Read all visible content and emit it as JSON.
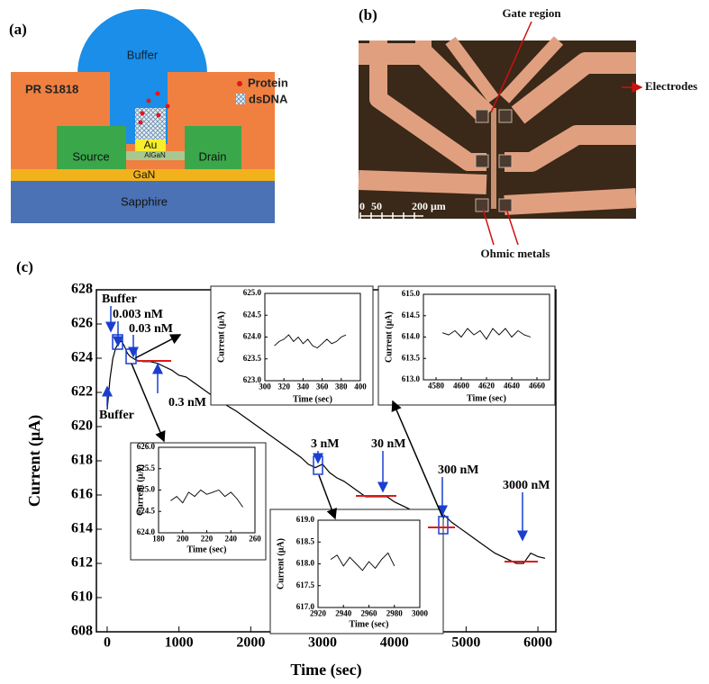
{
  "figure": {
    "panel_a": {
      "label": "(a)",
      "buffer": "Buffer",
      "resist": "PR S1818",
      "protein": "Protein",
      "dsdna": "dsDNA",
      "source": "Source",
      "drain": "Drain",
      "au": "Au",
      "algan": "AlGaN",
      "gan": "GaN",
      "sapphire": "Sapphire"
    },
    "panel_b": {
      "label": "(b)",
      "gate": "Gate region",
      "electrodes": "Electrodes",
      "ohmic": "Ohmic metals",
      "scale_0": "0",
      "scale_50": "50",
      "scale_200": "200 μm"
    },
    "panel_c": {
      "label": "(c)"
    }
  },
  "chart_data": [
    {
      "type": "line",
      "xlabel": "Time (sec)",
      "ylabel": "Current (μA)",
      "color": "#000000",
      "annotations": [
        "Buffer",
        "0.003 nM",
        "0.03 nM",
        "0.3 nM",
        "Buffer",
        "3 nM",
        "30 nM",
        "300 nM",
        "3000 nM"
      ],
      "xlim": [
        -150,
        6250
      ],
      "xticks": [
        0,
        1000,
        2000,
        3000,
        4000,
        5000,
        6000
      ],
      "ylim": [
        608,
        628
      ],
      "yticks": [
        608,
        610,
        612,
        614,
        616,
        618,
        620,
        622,
        624,
        626,
        628
      ],
      "x": [
        0,
        40,
        80,
        120,
        160,
        200,
        240,
        280,
        320,
        360,
        400,
        500,
        600,
        700,
        800,
        900,
        1000,
        1100,
        1200,
        1400,
        1600,
        1800,
        2000,
        2200,
        2400,
        2600,
        2700,
        2800,
        2900,
        3000,
        3100,
        3200,
        3300,
        3400,
        3500,
        3600,
        3700,
        3800,
        3900,
        4000,
        4200,
        4400,
        4600,
        4650,
        4700,
        4800,
        5000,
        5200,
        5400,
        5600,
        5700,
        5800,
        5850,
        5900,
        6000,
        6100
      ],
      "values": [
        621.0,
        622.8,
        624.0,
        624.6,
        624.9,
        625.0,
        624.7,
        624.3,
        624.1,
        624.0,
        623.9,
        623.8,
        623.8,
        623.7,
        623.5,
        623.3,
        623.0,
        622.9,
        622.6,
        622.0,
        621.4,
        620.9,
        620.3,
        619.7,
        619.1,
        618.5,
        618.2,
        617.8,
        617.6,
        617.8,
        617.3,
        617.0,
        616.8,
        616.5,
        616.2,
        615.9,
        615.9,
        615.9,
        615.9,
        615.6,
        615.2,
        614.6,
        614.2,
        614.3,
        614.8,
        614.4,
        613.8,
        613.2,
        612.6,
        612.2,
        612.0,
        612.0,
        612.3,
        612.6,
        612.4,
        612.3
      ]
    },
    {
      "type": "line",
      "xlabel": "Time (sec)",
      "ylabel": "Current (μA)",
      "color": "#000000",
      "xlim": [
        300,
        400
      ],
      "xticks": [
        300,
        320,
        340,
        360,
        380,
        400
      ],
      "ylim": [
        623,
        625
      ],
      "yticks": [
        {
          "value": 623,
          "label": "623.0"
        },
        623.5,
        {
          "value": 624,
          "label": "624.0"
        },
        624.5,
        {
          "value": 625,
          "label": "625.0"
        }
      ],
      "x": [
        310,
        315,
        320,
        325,
        330,
        335,
        340,
        345,
        350,
        355,
        360,
        365,
        370,
        375,
        380,
        385
      ],
      "values": [
        623.8,
        623.9,
        623.95,
        624.05,
        623.9,
        624.0,
        623.85,
        623.95,
        623.8,
        623.75,
        623.85,
        623.95,
        623.85,
        623.9,
        624.0,
        624.05
      ]
    },
    {
      "type": "line",
      "xlabel": "Time (sec)",
      "ylabel": "Current (μA)",
      "color": "#000000",
      "xlim": [
        4570,
        4670
      ],
      "xticks": [
        4580,
        4600,
        4620,
        4640,
        4660
      ],
      "ylim": [
        613,
        615
      ],
      "yticks": [
        {
          "value": 613,
          "label": "613.0"
        },
        613.5,
        {
          "value": 614,
          "label": "614.0"
        },
        614.5,
        {
          "value": 615,
          "label": "615.0"
        }
      ],
      "x": [
        4585,
        4590,
        4595,
        4600,
        4605,
        4610,
        4615,
        4620,
        4625,
        4630,
        4635,
        4640,
        4645,
        4650,
        4655
      ],
      "values": [
        614.1,
        614.05,
        614.15,
        614.0,
        614.2,
        614.05,
        614.15,
        613.95,
        614.2,
        614.05,
        614.2,
        614.0,
        614.15,
        614.05,
        614.0
      ]
    },
    {
      "type": "line",
      "xlabel": "Time (sec)",
      "ylabel": "Current (μA)",
      "color": "#000000",
      "xlim": [
        180,
        260
      ],
      "xticks": [
        180,
        200,
        220,
        240,
        260
      ],
      "ylim": [
        624,
        626
      ],
      "yticks": [
        {
          "value": 624,
          "label": "624.0"
        },
        624.5,
        {
          "value": 625,
          "label": "625.0"
        },
        625.5,
        {
          "value": 626,
          "label": "626.0"
        }
      ],
      "x": [
        190,
        195,
        200,
        205,
        210,
        215,
        220,
        225,
        230,
        235,
        240,
        245,
        250
      ],
      "values": [
        624.75,
        624.85,
        624.7,
        624.95,
        624.85,
        625.0,
        624.9,
        624.95,
        625.0,
        624.85,
        624.95,
        624.8,
        624.6
      ]
    },
    {
      "type": "line",
      "xlabel": "Time (sec)",
      "ylabel": "Current (μA)",
      "color": "#000000",
      "xlim": [
        2920,
        3000
      ],
      "xticks": [
        2920,
        2940,
        2960,
        2980,
        3000
      ],
      "ylim": [
        617,
        619
      ],
      "yticks": [
        {
          "value": 617,
          "label": "617.0"
        },
        617.5,
        {
          "value": 618,
          "label": "618.0"
        },
        618.5,
        {
          "value": 619,
          "label": "619.0"
        }
      ],
      "x": [
        2930,
        2935,
        2940,
        2945,
        2950,
        2955,
        2960,
        2965,
        2970,
        2975,
        2980
      ],
      "values": [
        618.1,
        618.2,
        617.95,
        618.15,
        618.0,
        617.85,
        618.05,
        617.9,
        618.1,
        618.25,
        617.95
      ]
    }
  ]
}
